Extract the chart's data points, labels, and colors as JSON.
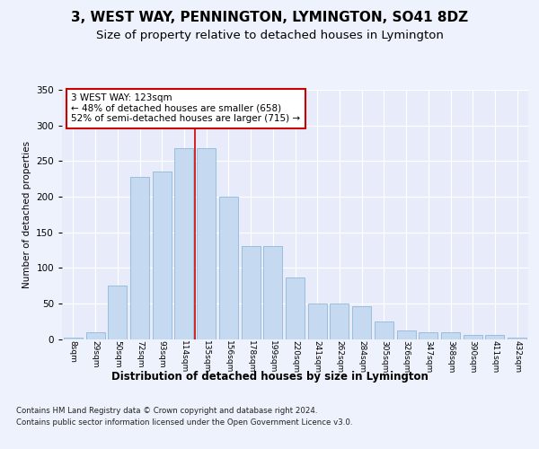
{
  "title": "3, WEST WAY, PENNINGTON, LYMINGTON, SO41 8DZ",
  "subtitle": "Size of property relative to detached houses in Lymington",
  "xlabel": "Distribution of detached houses by size in Lymington",
  "ylabel": "Number of detached properties",
  "categories": [
    "8sqm",
    "29sqm",
    "50sqm",
    "72sqm",
    "93sqm",
    "114sqm",
    "135sqm",
    "156sqm",
    "178sqm",
    "199sqm",
    "220sqm",
    "241sqm",
    "262sqm",
    "284sqm",
    "305sqm",
    "326sqm",
    "347sqm",
    "368sqm",
    "390sqm",
    "411sqm",
    "432sqm"
  ],
  "values": [
    2,
    9,
    75,
    228,
    235,
    268,
    268,
    200,
    130,
    130,
    87,
    50,
    50,
    46,
    25,
    12,
    10,
    9,
    6,
    6,
    2
  ],
  "bar_color": "#c5d9f1",
  "bar_edge_color": "#8fb8d8",
  "vline_x": 5.5,
  "vline_color": "#cc0000",
  "annotation_text": "3 WEST WAY: 123sqm\n← 48% of detached houses are smaller (658)\n52% of semi-detached houses are larger (715) →",
  "annotation_box_color": "#ffffff",
  "annotation_box_edge": "#cc0000",
  "ylim": [
    0,
    350
  ],
  "yticks": [
    0,
    50,
    100,
    150,
    200,
    250,
    300,
    350
  ],
  "footer1": "Contains HM Land Registry data © Crown copyright and database right 2024.",
  "footer2": "Contains public sector information licensed under the Open Government Licence v3.0.",
  "background_color": "#eef2fc",
  "plot_background": "#e8ecfa",
  "title_fontsize": 11,
  "subtitle_fontsize": 9.5
}
